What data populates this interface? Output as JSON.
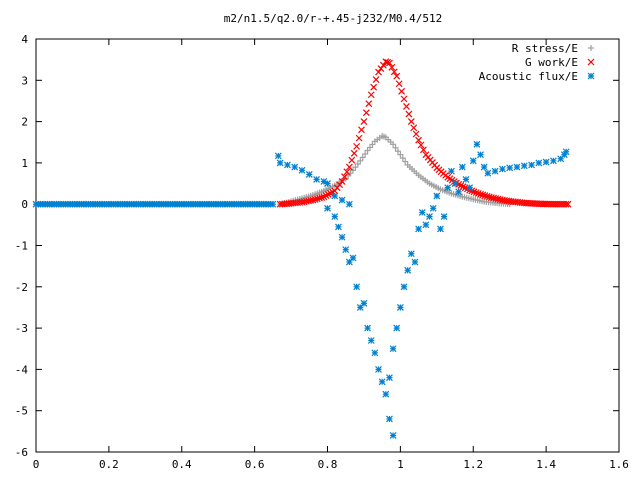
{
  "chart_data": {
    "type": "scatter",
    "title": "m2/n1.5/q2.0/r-+.45-j232/M0.4/512",
    "xlabel": "",
    "ylabel": "",
    "xlim": [
      0,
      1.6
    ],
    "ylim": [
      -6,
      4
    ],
    "x_ticks": [
      "0",
      "0.2",
      "0.4",
      "0.6",
      "0.8",
      "1",
      "1.2",
      "1.4",
      "1.6"
    ],
    "y_ticks": [
      "4",
      "3",
      "2",
      "1",
      "0",
      "-1",
      "-2",
      "-3",
      "-4",
      "-5",
      "-6"
    ],
    "grid": false,
    "legend_position": "top-right",
    "series": [
      {
        "name": "R stress/E",
        "marker": "plus",
        "color": "#a0a0a0",
        "points": [
          [
            0.67,
            0.0
          ],
          [
            0.7,
            0.07
          ],
          [
            0.73,
            0.14
          ],
          [
            0.76,
            0.22
          ],
          [
            0.79,
            0.32
          ],
          [
            0.82,
            0.45
          ],
          [
            0.85,
            0.62
          ],
          [
            0.87,
            0.82
          ],
          [
            0.89,
            1.05
          ],
          [
            0.91,
            1.3
          ],
          [
            0.93,
            1.52
          ],
          [
            0.95,
            1.65
          ],
          [
            0.96,
            1.62
          ],
          [
            0.98,
            1.45
          ],
          [
            1.0,
            1.2
          ],
          [
            1.02,
            0.95
          ],
          [
            1.05,
            0.7
          ],
          [
            1.08,
            0.5
          ],
          [
            1.11,
            0.36
          ],
          [
            1.14,
            0.26
          ],
          [
            1.17,
            0.18
          ],
          [
            1.2,
            0.12
          ],
          [
            1.23,
            0.06
          ],
          [
            1.26,
            0.03
          ],
          [
            1.3,
            0.0
          ]
        ]
      },
      {
        "name": "G work/E",
        "marker": "cross",
        "color": "#ff0000",
        "points": [
          [
            0.67,
            0.0
          ],
          [
            0.7,
            0.02
          ],
          [
            0.73,
            0.05
          ],
          [
            0.76,
            0.1
          ],
          [
            0.79,
            0.18
          ],
          [
            0.82,
            0.32
          ],
          [
            0.84,
            0.55
          ],
          [
            0.86,
            0.9
          ],
          [
            0.88,
            1.4
          ],
          [
            0.9,
            2.0
          ],
          [
            0.92,
            2.65
          ],
          [
            0.94,
            3.2
          ],
          [
            0.96,
            3.45
          ],
          [
            0.97,
            3.42
          ],
          [
            0.99,
            3.1
          ],
          [
            1.01,
            2.55
          ],
          [
            1.03,
            2.0
          ],
          [
            1.05,
            1.55
          ],
          [
            1.07,
            1.2
          ],
          [
            1.1,
            0.88
          ],
          [
            1.13,
            0.65
          ],
          [
            1.16,
            0.48
          ],
          [
            1.19,
            0.34
          ],
          [
            1.22,
            0.24
          ],
          [
            1.25,
            0.16
          ],
          [
            1.28,
            0.1
          ],
          [
            1.31,
            0.06
          ],
          [
            1.34,
            0.03
          ],
          [
            1.38,
            0.01
          ],
          [
            1.42,
            0.0
          ],
          [
            1.46,
            0.0
          ]
        ]
      },
      {
        "name": "Acoustic flux/E",
        "marker": "star",
        "color": "#0080d0",
        "points": [
          [
            0.0,
            0.0
          ],
          [
            0.05,
            0.0
          ],
          [
            0.1,
            0.0
          ],
          [
            0.15,
            0.0
          ],
          [
            0.2,
            0.0
          ],
          [
            0.25,
            0.0
          ],
          [
            0.3,
            0.0
          ],
          [
            0.35,
            0.0
          ],
          [
            0.4,
            0.0
          ],
          [
            0.45,
            0.0
          ],
          [
            0.5,
            0.0
          ],
          [
            0.55,
            0.0
          ],
          [
            0.6,
            0.0
          ],
          [
            0.65,
            0.0
          ],
          [
            0.665,
            1.17
          ],
          [
            0.67,
            1.0
          ],
          [
            0.69,
            0.95
          ],
          [
            0.71,
            0.9
          ],
          [
            0.73,
            0.82
          ],
          [
            0.75,
            0.72
          ],
          [
            0.77,
            0.6
          ],
          [
            0.79,
            0.55
          ],
          [
            0.8,
            0.5
          ],
          [
            0.82,
            0.2
          ],
          [
            0.84,
            0.1
          ],
          [
            0.86,
            0.0
          ],
          [
            0.8,
            -0.1
          ],
          [
            0.82,
            -0.3
          ],
          [
            0.83,
            -0.55
          ],
          [
            0.84,
            -0.8
          ],
          [
            0.85,
            -1.1
          ],
          [
            0.86,
            -1.4
          ],
          [
            0.87,
            -1.3
          ],
          [
            0.88,
            -2.0
          ],
          [
            0.89,
            -2.5
          ],
          [
            0.9,
            -2.4
          ],
          [
            0.91,
            -3.0
          ],
          [
            0.92,
            -3.3
          ],
          [
            0.93,
            -3.6
          ],
          [
            0.94,
            -4.0
          ],
          [
            0.95,
            -4.3
          ],
          [
            0.96,
            -4.6
          ],
          [
            0.97,
            -4.2
          ],
          [
            0.98,
            -3.5
          ],
          [
            0.99,
            -3.0
          ],
          [
            0.97,
            -5.2
          ],
          [
            0.98,
            -5.6
          ],
          [
            1.0,
            -2.5
          ],
          [
            1.01,
            -2.0
          ],
          [
            1.02,
            -1.6
          ],
          [
            1.03,
            -1.2
          ],
          [
            1.04,
            -1.4
          ],
          [
            1.05,
            -0.6
          ],
          [
            1.06,
            -0.2
          ],
          [
            1.07,
            -0.5
          ],
          [
            1.08,
            -0.3
          ],
          [
            1.09,
            -0.1
          ],
          [
            1.1,
            0.2
          ],
          [
            1.11,
            -0.6
          ],
          [
            1.12,
            -0.3
          ],
          [
            1.13,
            0.4
          ],
          [
            1.14,
            0.8
          ],
          [
            1.15,
            0.5
          ],
          [
            1.16,
            0.3
          ],
          [
            1.17,
            0.9
          ],
          [
            1.18,
            0.6
          ],
          [
            1.19,
            0.4
          ],
          [
            1.2,
            1.05
          ],
          [
            1.21,
            1.45
          ],
          [
            1.22,
            1.2
          ],
          [
            1.23,
            0.9
          ],
          [
            1.24,
            0.75
          ],
          [
            1.26,
            0.8
          ],
          [
            1.28,
            0.85
          ],
          [
            1.3,
            0.88
          ],
          [
            1.32,
            0.9
          ],
          [
            1.34,
            0.93
          ],
          [
            1.36,
            0.95
          ],
          [
            1.38,
            1.0
          ],
          [
            1.4,
            1.02
          ],
          [
            1.42,
            1.05
          ],
          [
            1.44,
            1.1
          ],
          [
            1.45,
            1.2
          ],
          [
            1.455,
            1.27
          ]
        ]
      }
    ]
  }
}
